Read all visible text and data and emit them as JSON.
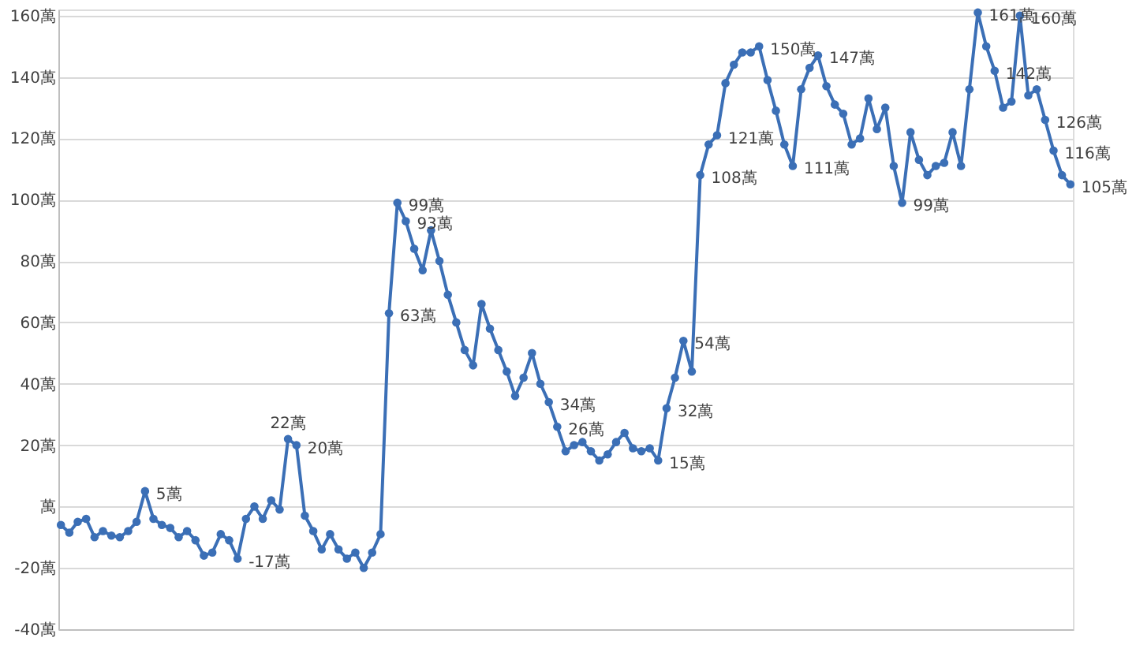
{
  "chart_data": {
    "type": "line",
    "categories": [
      null,
      null,
      null,
      null,
      null,
      null,
      null,
      null,
      null,
      null,
      null,
      null,
      null,
      null,
      null,
      null,
      null,
      null,
      null,
      null,
      null,
      null,
      null,
      null,
      null,
      null,
      null,
      null,
      null,
      null,
      null,
      null,
      null,
      null,
      null,
      null,
      null,
      null,
      null,
      null,
      null,
      null,
      null,
      null,
      null,
      null,
      null,
      null,
      null,
      null,
      null,
      null,
      null,
      null,
      null,
      null,
      null,
      null,
      null,
      null,
      null,
      null,
      null,
      null,
      null,
      null,
      null,
      null,
      null,
      null,
      null,
      null,
      null,
      null,
      null,
      null,
      null,
      null,
      null,
      null,
      null,
      null,
      null,
      null,
      null,
      null,
      null,
      null,
      null,
      null,
      null,
      null,
      null,
      null,
      null,
      null,
      null,
      null,
      null,
      null,
      null,
      null,
      null,
      null,
      null,
      null,
      null,
      null,
      null,
      null,
      null,
      null,
      null,
      null,
      null,
      null,
      null,
      null,
      null,
      null,
      null
    ],
    "series": [
      {
        "color": "#3b6fb6",
        "values": [
          -6,
          -8.5,
          -5,
          -4,
          -10,
          -8,
          -9.5,
          -10,
          -8,
          -5,
          5,
          -4,
          -6,
          -7,
          -10,
          -8,
          -11,
          -16,
          -15,
          -9,
          -11,
          -17,
          -4,
          0,
          -4,
          2,
          -1,
          22,
          20,
          -3,
          -8,
          -14,
          -9,
          -14,
          -17,
          -15,
          -20,
          -15,
          -9,
          63,
          99,
          93,
          84,
          77,
          90,
          80,
          69,
          60,
          51,
          46,
          66,
          58,
          51,
          44,
          36,
          42,
          50,
          40,
          34,
          26,
          18,
          20,
          21,
          18,
          15,
          17,
          21,
          24,
          19,
          18,
          19,
          15,
          32,
          42,
          54,
          44,
          108,
          118,
          121,
          138,
          144,
          148,
          148,
          150,
          139,
          129,
          118,
          111,
          136,
          143,
          147,
          137,
          131,
          128,
          118,
          120,
          133,
          123,
          130,
          111,
          99,
          122,
          113,
          108,
          111,
          112,
          122,
          111,
          136,
          161,
          150,
          142,
          130,
          132,
          160,
          134,
          136,
          126,
          116,
          108,
          105
        ],
        "value_labels": [
          null,
          null,
          null,
          null,
          null,
          null,
          null,
          null,
          null,
          null,
          "5萬",
          null,
          null,
          null,
          null,
          null,
          null,
          null,
          null,
          null,
          null,
          "-17萬",
          null,
          null,
          null,
          null,
          null,
          "22萬",
          "20萬",
          null,
          null,
          null,
          null,
          null,
          null,
          null,
          null,
          null,
          null,
          "63萬",
          "99萬",
          "93萬",
          null,
          null,
          null,
          null,
          null,
          null,
          null,
          null,
          null,
          null,
          null,
          null,
          null,
          null,
          null,
          null,
          "34萬",
          "26萬",
          null,
          null,
          null,
          null,
          null,
          null,
          null,
          null,
          null,
          null,
          null,
          "15萬",
          "32萬",
          null,
          "54萬",
          null,
          "108萬",
          null,
          "121萬",
          null,
          null,
          null,
          null,
          "150萬",
          null,
          null,
          null,
          "111萬",
          null,
          null,
          "147萬",
          null,
          null,
          null,
          null,
          null,
          null,
          null,
          null,
          null,
          "99萬",
          null,
          null,
          null,
          null,
          null,
          null,
          null,
          null,
          "161萬",
          null,
          "142萬",
          null,
          null,
          "160萬",
          null,
          null,
          "126萬",
          "116萬",
          null,
          "105萬"
        ]
      }
    ],
    "ylim": [
      -40,
      162
    ],
    "yticks": [
      {
        "value": -40,
        "label": "-40萬"
      },
      {
        "value": -20,
        "label": "-20萬"
      },
      {
        "value": 0,
        "label": "萬"
      },
      {
        "value": 20,
        "label": "20萬"
      },
      {
        "value": 40,
        "label": "40萬"
      },
      {
        "value": 60,
        "label": "60萬"
      },
      {
        "value": 80,
        "label": "80萬"
      },
      {
        "value": 100,
        "label": "100萬"
      },
      {
        "value": 120,
        "label": "120萬"
      },
      {
        "value": 140,
        "label": "140萬"
      },
      {
        "value": 160,
        "label": "160萬"
      }
    ],
    "grid": "y",
    "marker": "circle"
  }
}
